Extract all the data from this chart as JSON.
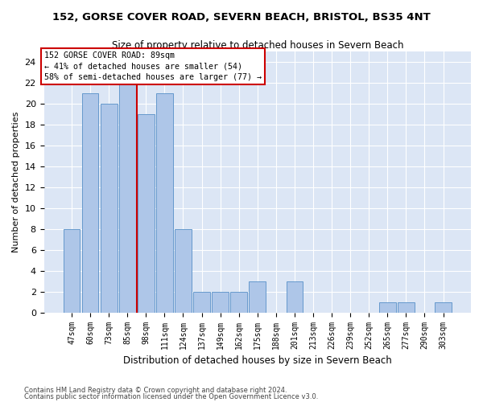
{
  "title1": "152, GORSE COVER ROAD, SEVERN BEACH, BRISTOL, BS35 4NT",
  "title2": "Size of property relative to detached houses in Severn Beach",
  "xlabel": "Distribution of detached houses by size in Severn Beach",
  "ylabel": "Number of detached properties",
  "categories": [
    "47sqm",
    "60sqm",
    "73sqm",
    "85sqm",
    "98sqm",
    "111sqm",
    "124sqm",
    "137sqm",
    "149sqm",
    "162sqm",
    "175sqm",
    "188sqm",
    "201sqm",
    "213sqm",
    "226sqm",
    "239sqm",
    "252sqm",
    "265sqm",
    "277sqm",
    "290sqm",
    "303sqm"
  ],
  "values": [
    8,
    21,
    20,
    22,
    19,
    21,
    8,
    2,
    2,
    2,
    3,
    0,
    3,
    0,
    0,
    0,
    0,
    1,
    1,
    0,
    1
  ],
  "bar_color": "#aec6e8",
  "bar_edge_color": "#6699cc",
  "vline_x": 3.5,
  "vline_color": "#cc0000",
  "annotation_lines": [
    "152 GORSE COVER ROAD: 89sqm",
    "← 41% of detached houses are smaller (54)",
    "58% of semi-detached houses are larger (77) →"
  ],
  "annotation_box_color": "#ffffff",
  "annotation_box_edge": "#cc0000",
  "ylim": [
    0,
    25
  ],
  "yticks": [
    0,
    2,
    4,
    6,
    8,
    10,
    12,
    14,
    16,
    18,
    20,
    22,
    24
  ],
  "background_color": "#dce6f5",
  "footer1": "Contains HM Land Registry data © Crown copyright and database right 2024.",
  "footer2": "Contains public sector information licensed under the Open Government Licence v3.0."
}
